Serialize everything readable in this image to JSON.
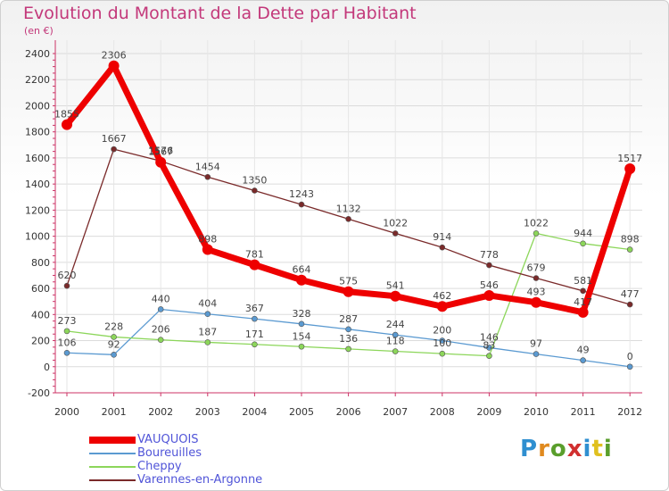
{
  "title": "Evolution du Montant de la Dette par Habitant",
  "unit": "(en €)",
  "brand": {
    "text": "Proxiti",
    "colors": [
      "#2f8fd0",
      "#e08a1f",
      "#5a9e2c",
      "#d12f2f",
      "#2f8fd0",
      "#e0c01f",
      "#5a9e2c"
    ]
  },
  "chart_data": {
    "type": "line",
    "x": [
      "2000",
      "2001",
      "2002",
      "2003",
      "2004",
      "2005",
      "2006",
      "2007",
      "2008",
      "2009",
      "2010",
      "2011",
      "2012"
    ],
    "ylim": [
      -200,
      2400
    ],
    "yticks": [
      "-200",
      "0",
      "200",
      "400",
      "600",
      "800",
      "1000",
      "1200",
      "1400",
      "1600",
      "1800",
      "2000",
      "2200",
      "2400"
    ],
    "grid": true,
    "legend_position": "bottom-left",
    "series": [
      {
        "name": "VAUQUOIS",
        "color": "#ee0000",
        "width": 7,
        "values": [
          1855,
          2306,
          1567,
          898,
          781,
          664,
          575,
          541,
          462,
          546,
          493,
          417,
          1517
        ],
        "labels": [
          "1855",
          "2306",
          "1567",
          "898",
          "781",
          "664",
          "575",
          "541",
          "462",
          "546",
          "493",
          "417",
          "1517"
        ]
      },
      {
        "name": "Boureuilles",
        "color": "#5b9ad1",
        "width": 1.3,
        "values": [
          106,
          92,
          440,
          404,
          367,
          328,
          287,
          244,
          200,
          146,
          97,
          49,
          0
        ],
        "labels": [
          "106",
          "92",
          "440",
          "404",
          "367",
          "328",
          "287",
          "244",
          "200",
          "146",
          "97",
          "49",
          "0"
        ]
      },
      {
        "name": "Cheppy",
        "color": "#8cd65a",
        "width": 1.3,
        "values": [
          273,
          228,
          206,
          187,
          171,
          154,
          136,
          118,
          100,
          83,
          1022,
          944,
          898
        ],
        "labels": [
          "273",
          "228",
          "206",
          "187",
          "171",
          "154",
          "136",
          "118",
          "100",
          "83",
          "1022",
          "944",
          "898"
        ]
      },
      {
        "name": "Varennes-en-Argonne",
        "color": "#7a2a2a",
        "width": 1.3,
        "values": [
          620,
          1667,
          1576,
          1454,
          1350,
          1243,
          1132,
          1022,
          914,
          778,
          679,
          581,
          477
        ],
        "labels": [
          "620",
          "1667",
          "1576",
          "1454",
          "1350",
          "1243",
          "1132",
          "1022",
          "914",
          "778",
          "679",
          "581",
          "477"
        ]
      }
    ]
  }
}
